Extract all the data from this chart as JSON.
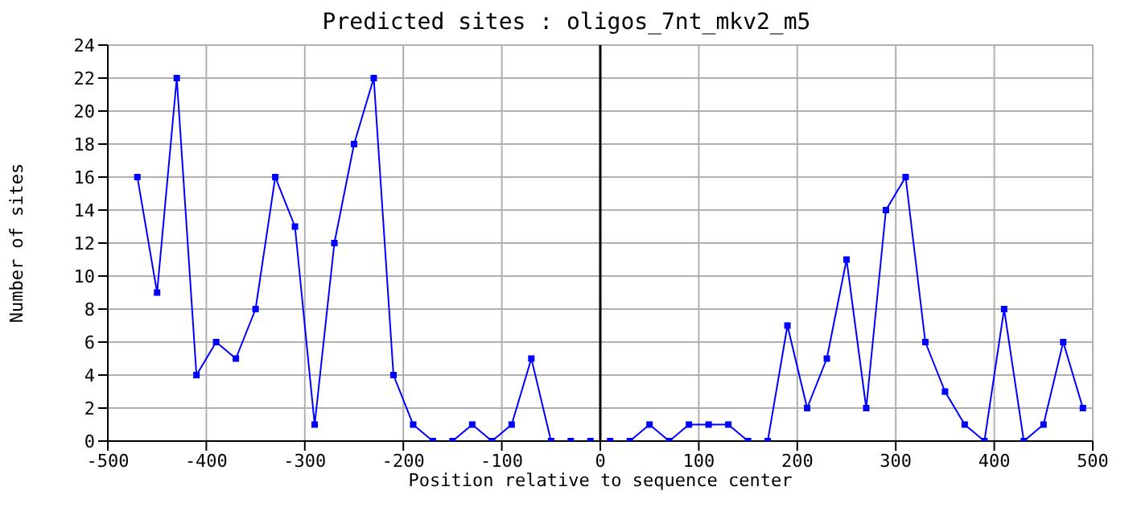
{
  "chart_data": {
    "type": "line",
    "title": "Predicted sites : oligos_7nt_mkv2_m5",
    "xlabel": "Position relative to sequence center",
    "ylabel": "Number of sites",
    "x": [
      -470,
      -450,
      -430,
      -410,
      -390,
      -370,
      -350,
      -330,
      -310,
      -290,
      -270,
      -250,
      -230,
      -210,
      -190,
      -170,
      -150,
      -130,
      -110,
      -90,
      -70,
      -50,
      -30,
      -10,
      10,
      30,
      50,
      70,
      90,
      110,
      130,
      150,
      170,
      190,
      210,
      230,
      250,
      270,
      290,
      310,
      330,
      350,
      370,
      390,
      410,
      430,
      450,
      470,
      490
    ],
    "series": [
      {
        "color": "#0000ff",
        "values": [
          16,
          9,
          22,
          4,
          6,
          5,
          8,
          16,
          13,
          1,
          12,
          18,
          22,
          4,
          1,
          0,
          0,
          1,
          0,
          1,
          5,
          0,
          0,
          0,
          0,
          0,
          1,
          0,
          1,
          1,
          1,
          0,
          0,
          7,
          2,
          5,
          11,
          2,
          14,
          16,
          6,
          3,
          1,
          0,
          8,
          0,
          1,
          6,
          2
        ]
      }
    ],
    "xlim": [
      -500,
      500
    ],
    "xticks": [
      -500,
      -400,
      -300,
      -200,
      -100,
      0,
      100,
      200,
      300,
      400,
      500
    ],
    "ylim": [
      0,
      24
    ],
    "yticks": [
      0,
      2,
      4,
      6,
      8,
      10,
      12,
      14,
      16,
      18,
      20,
      22,
      24
    ],
    "grid": true,
    "marker": "square",
    "line_style": "solid",
    "ref_lines": [
      {
        "axis": "x",
        "value": 0,
        "color": "#000000"
      }
    ]
  }
}
